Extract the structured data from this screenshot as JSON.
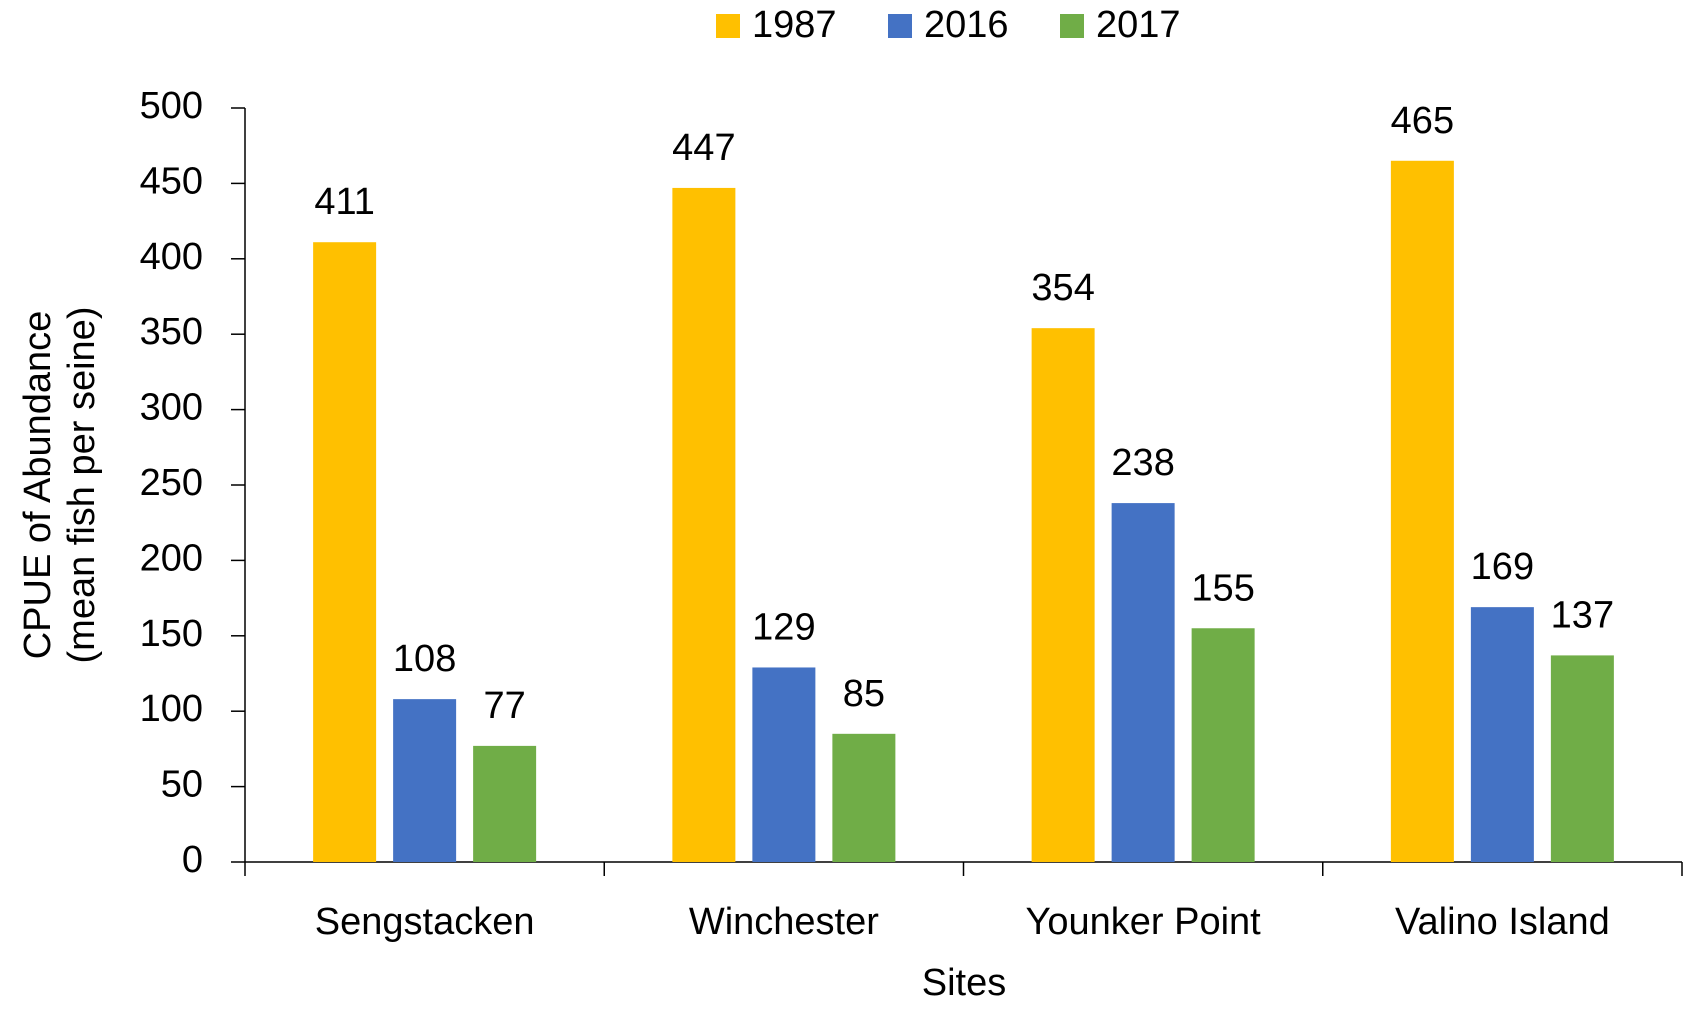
{
  "chart_data": {
    "type": "bar",
    "categories": [
      "Sengstacken",
      "Winchester",
      "Younker Point",
      "Valino Island"
    ],
    "series": [
      {
        "name": "1987",
        "color": "#ffc000",
        "values": [
          411,
          447,
          354,
          465
        ]
      },
      {
        "name": "2016",
        "color": "#4472c4",
        "values": [
          108,
          129,
          238,
          169
        ]
      },
      {
        "name": "2017",
        "color": "#70ad47",
        "values": [
          77,
          85,
          155,
          137
        ]
      }
    ],
    "xlabel": "Sites",
    "ylabel": [
      "CPUE of Abundance",
      "(mean fish per seine)"
    ],
    "ylim": [
      0,
      500
    ],
    "yticks": [
      0,
      50,
      100,
      150,
      200,
      250,
      300,
      350,
      400,
      450,
      500
    ],
    "grid": false,
    "legend": "top"
  }
}
